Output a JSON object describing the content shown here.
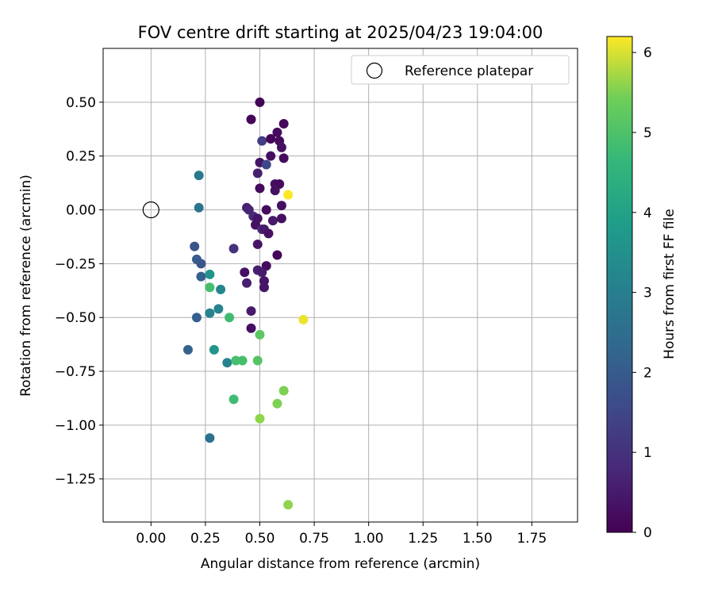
{
  "chart_data": {
    "type": "scatter",
    "title": "FOV centre drift starting at 2025/04/23 19:04:00",
    "xlabel": "Angular distance from reference (arcmin)",
    "ylabel": "Rotation from reference (arcmin)",
    "xlim": [
      -0.22,
      1.96
    ],
    "ylim": [
      -1.45,
      0.75
    ],
    "xticks": [
      0.0,
      0.25,
      0.5,
      0.75,
      1.0,
      1.25,
      1.5,
      1.75
    ],
    "xtick_labels": [
      "0.00",
      "0.25",
      "0.50",
      "0.75",
      "1.00",
      "1.25",
      "1.50",
      "1.75"
    ],
    "yticks": [
      0.5,
      0.25,
      0.0,
      -0.25,
      -0.5,
      -0.75,
      -1.0,
      -1.25
    ],
    "ytick_labels": [
      "0.50",
      "0.25",
      "0.00",
      "−0.25",
      "−0.50",
      "−0.75",
      "−1.00",
      "−1.25"
    ],
    "grid": true,
    "legend": {
      "position": "top-right",
      "entries": [
        "Reference platepar"
      ]
    },
    "reference_point": {
      "x": 0.0,
      "y": 0.0
    },
    "colorbar": {
      "label": "Hours from first FF file",
      "min": 0,
      "max": 6.2,
      "ticks": [
        0,
        1,
        2,
        3,
        4,
        5,
        6
      ],
      "tick_labels": [
        "0",
        "1",
        "2",
        "3",
        "4",
        "5",
        "6"
      ],
      "colormap": "viridis"
    },
    "points": [
      {
        "x": 0.5,
        "y": 0.5,
        "c": 0.05
      },
      {
        "x": 0.46,
        "y": 0.42,
        "c": 0.1
      },
      {
        "x": 0.61,
        "y": 0.4,
        "c": 0.15
      },
      {
        "x": 0.58,
        "y": 0.36,
        "c": 0.2
      },
      {
        "x": 0.51,
        "y": 0.32,
        "c": 1.3
      },
      {
        "x": 0.55,
        "y": 0.33,
        "c": 0.1
      },
      {
        "x": 0.59,
        "y": 0.32,
        "c": 0.2
      },
      {
        "x": 0.6,
        "y": 0.29,
        "c": 0.3
      },
      {
        "x": 0.55,
        "y": 0.25,
        "c": 0.25
      },
      {
        "x": 0.61,
        "y": 0.24,
        "c": 0.2
      },
      {
        "x": 0.5,
        "y": 0.22,
        "c": 0.4
      },
      {
        "x": 0.53,
        "y": 0.21,
        "c": 1.5
      },
      {
        "x": 0.49,
        "y": 0.17,
        "c": 0.6
      },
      {
        "x": 0.57,
        "y": 0.12,
        "c": 0.3
      },
      {
        "x": 0.59,
        "y": 0.12,
        "c": 0.2
      },
      {
        "x": 0.5,
        "y": 0.1,
        "c": 0.2
      },
      {
        "x": 0.57,
        "y": 0.09,
        "c": 0.3
      },
      {
        "x": 0.63,
        "y": 0.07,
        "c": 6.2
      },
      {
        "x": 0.44,
        "y": 0.01,
        "c": 0.6
      },
      {
        "x": 0.6,
        "y": 0.02,
        "c": 0.3
      },
      {
        "x": 0.45,
        "y": 0.0,
        "c": 0.7
      },
      {
        "x": 0.53,
        "y": 0.0,
        "c": 0.2
      },
      {
        "x": 0.47,
        "y": -0.03,
        "c": 0.8
      },
      {
        "x": 0.49,
        "y": -0.04,
        "c": 0.4
      },
      {
        "x": 0.56,
        "y": -0.05,
        "c": 0.5
      },
      {
        "x": 0.6,
        "y": -0.04,
        "c": 0.3
      },
      {
        "x": 0.48,
        "y": -0.07,
        "c": 0.3
      },
      {
        "x": 0.51,
        "y": -0.09,
        "c": 0.9
      },
      {
        "x": 0.52,
        "y": -0.09,
        "c": 0.5
      },
      {
        "x": 0.54,
        "y": -0.11,
        "c": 0.3
      },
      {
        "x": 0.49,
        "y": -0.16,
        "c": 0.4
      },
      {
        "x": 0.58,
        "y": -0.21,
        "c": 0.1
      },
      {
        "x": 0.38,
        "y": -0.18,
        "c": 1.0
      },
      {
        "x": 0.53,
        "y": -0.26,
        "c": 0.2
      },
      {
        "x": 0.49,
        "y": -0.28,
        "c": 0.6
      },
      {
        "x": 0.43,
        "y": -0.29,
        "c": 0.3
      },
      {
        "x": 0.51,
        "y": -0.29,
        "c": 0.5
      },
      {
        "x": 0.44,
        "y": -0.34,
        "c": 0.6
      },
      {
        "x": 0.52,
        "y": -0.33,
        "c": 0.4
      },
      {
        "x": 0.52,
        "y": -0.36,
        "c": 0.4
      },
      {
        "x": 0.46,
        "y": -0.47,
        "c": 0.5
      },
      {
        "x": 0.46,
        "y": -0.55,
        "c": 0.3
      },
      {
        "x": 0.7,
        "y": -0.51,
        "c": 6.1
      },
      {
        "x": 0.22,
        "y": 0.16,
        "c": 2.8
      },
      {
        "x": 0.22,
        "y": 0.01,
        "c": 2.7
      },
      {
        "x": 0.2,
        "y": -0.17,
        "c": 1.8
      },
      {
        "x": 0.21,
        "y": -0.23,
        "c": 2.0
      },
      {
        "x": 0.23,
        "y": -0.25,
        "c": 1.9
      },
      {
        "x": 0.23,
        "y": -0.31,
        "c": 2.1
      },
      {
        "x": 0.27,
        "y": -0.3,
        "c": 3.6
      },
      {
        "x": 0.27,
        "y": -0.36,
        "c": 4.9
      },
      {
        "x": 0.32,
        "y": -0.37,
        "c": 3.2
      },
      {
        "x": 0.27,
        "y": -0.48,
        "c": 3.1
      },
      {
        "x": 0.31,
        "y": -0.46,
        "c": 3.1
      },
      {
        "x": 0.21,
        "y": -0.5,
        "c": 2.1
      },
      {
        "x": 0.36,
        "y": -0.5,
        "c": 4.8
      },
      {
        "x": 0.17,
        "y": -0.65,
        "c": 2.2
      },
      {
        "x": 0.29,
        "y": -0.65,
        "c": 3.6
      },
      {
        "x": 0.35,
        "y": -0.71,
        "c": 3.1
      },
      {
        "x": 0.39,
        "y": -0.7,
        "c": 4.9
      },
      {
        "x": 0.42,
        "y": -0.7,
        "c": 4.9
      },
      {
        "x": 0.49,
        "y": -0.7,
        "c": 5.1
      },
      {
        "x": 0.5,
        "y": -0.58,
        "c": 5.2
      },
      {
        "x": 0.38,
        "y": -0.88,
        "c": 4.8
      },
      {
        "x": 0.61,
        "y": -0.84,
        "c": 5.5
      },
      {
        "x": 0.58,
        "y": -0.9,
        "c": 5.5
      },
      {
        "x": 0.5,
        "y": -0.97,
        "c": 5.6
      },
      {
        "x": 0.27,
        "y": -1.06,
        "c": 2.6
      },
      {
        "x": 0.63,
        "y": -1.37,
        "c": 5.6
      }
    ]
  }
}
